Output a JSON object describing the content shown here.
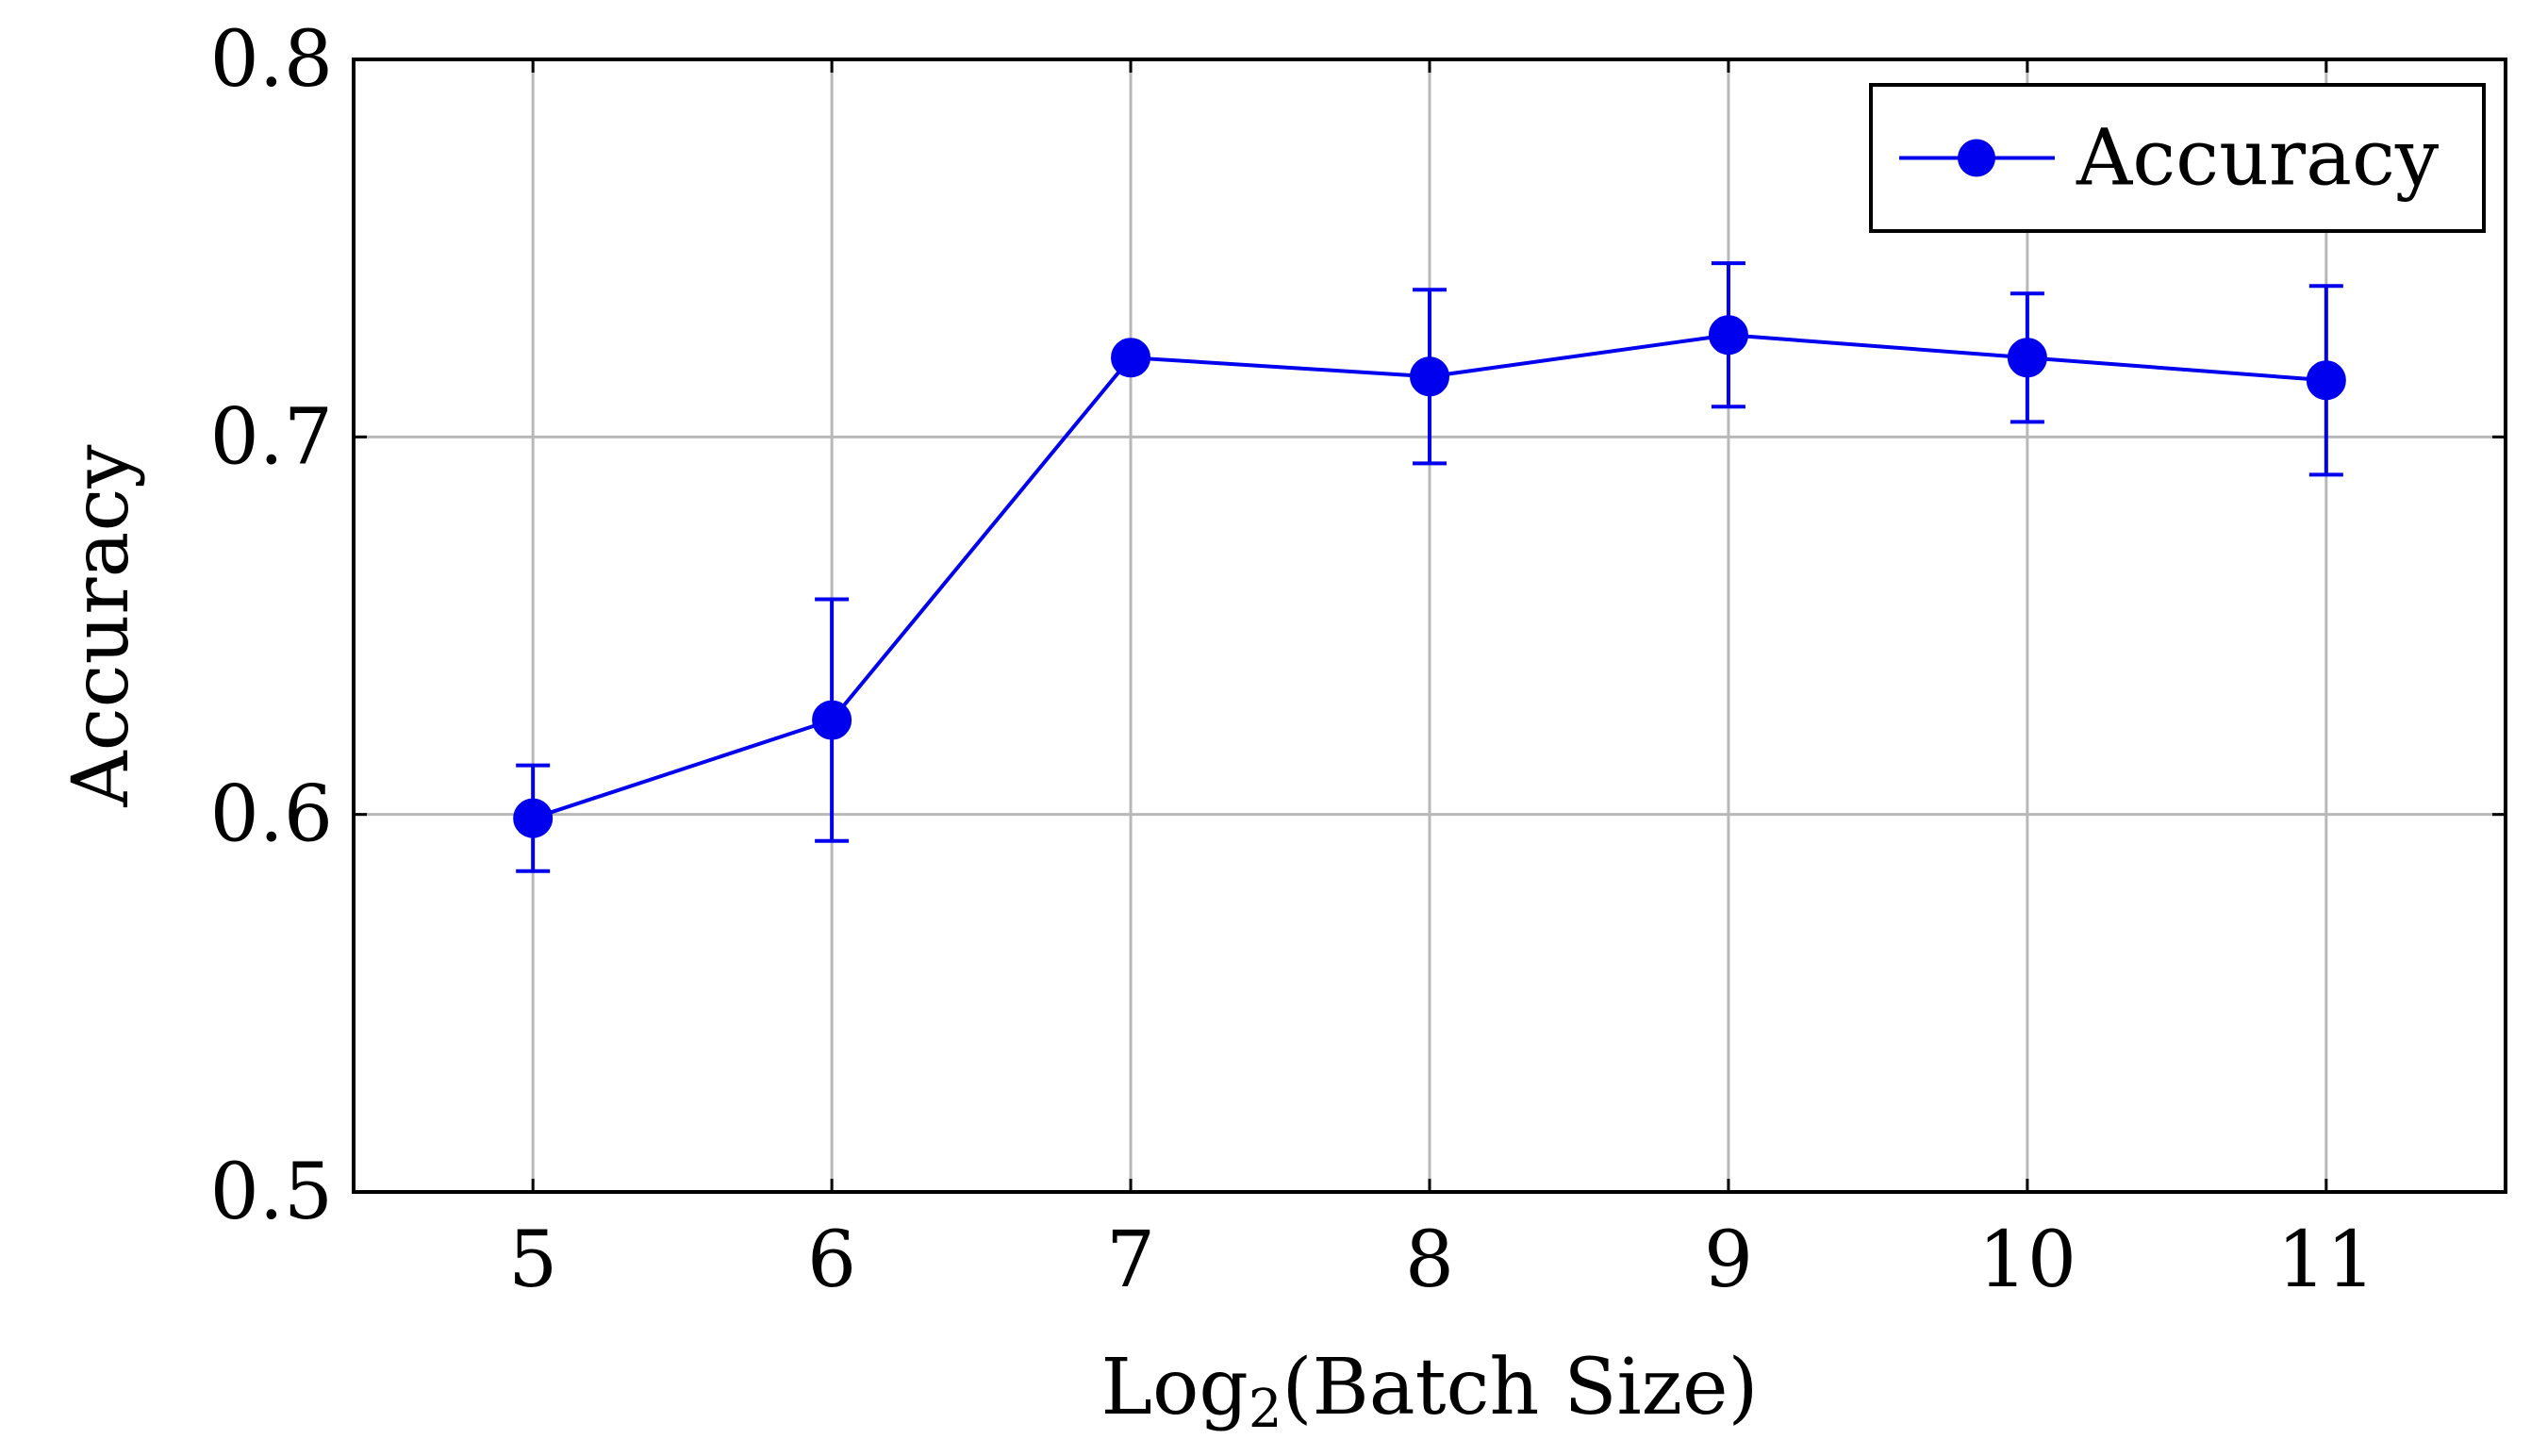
{
  "chart_data": {
    "type": "line",
    "x": [
      5,
      6,
      7,
      8,
      9,
      10,
      11
    ],
    "x_tick_labels": [
      "5",
      "6",
      "7",
      "8",
      "9",
      "10",
      "11"
    ],
    "y_tick_labels": [
      "0.5",
      "0.6",
      "0.7",
      "0.8"
    ],
    "y_ticks": [
      0.5,
      0.6,
      0.7,
      0.8
    ],
    "xlim": [
      4.4,
      11.6
    ],
    "ylim": [
      0.5,
      0.8
    ],
    "xlabel_main": "Log",
    "xlabel_sub": "2",
    "xlabel_rest": "(Batch Size)",
    "ylabel": "Accuracy",
    "grid": true,
    "legend_position": "top-right",
    "series": [
      {
        "name": "Accuracy",
        "color": "#0000ee",
        "marker": "circle",
        "values": [
          0.599,
          0.625,
          0.721,
          0.716,
          0.727,
          0.721,
          0.715
        ],
        "err_upper": [
          0.613,
          0.657,
          0.721,
          0.739,
          0.746,
          0.738,
          0.74
        ],
        "err_lower": [
          0.585,
          0.593,
          0.721,
          0.693,
          0.708,
          0.704,
          0.69
        ]
      }
    ]
  }
}
